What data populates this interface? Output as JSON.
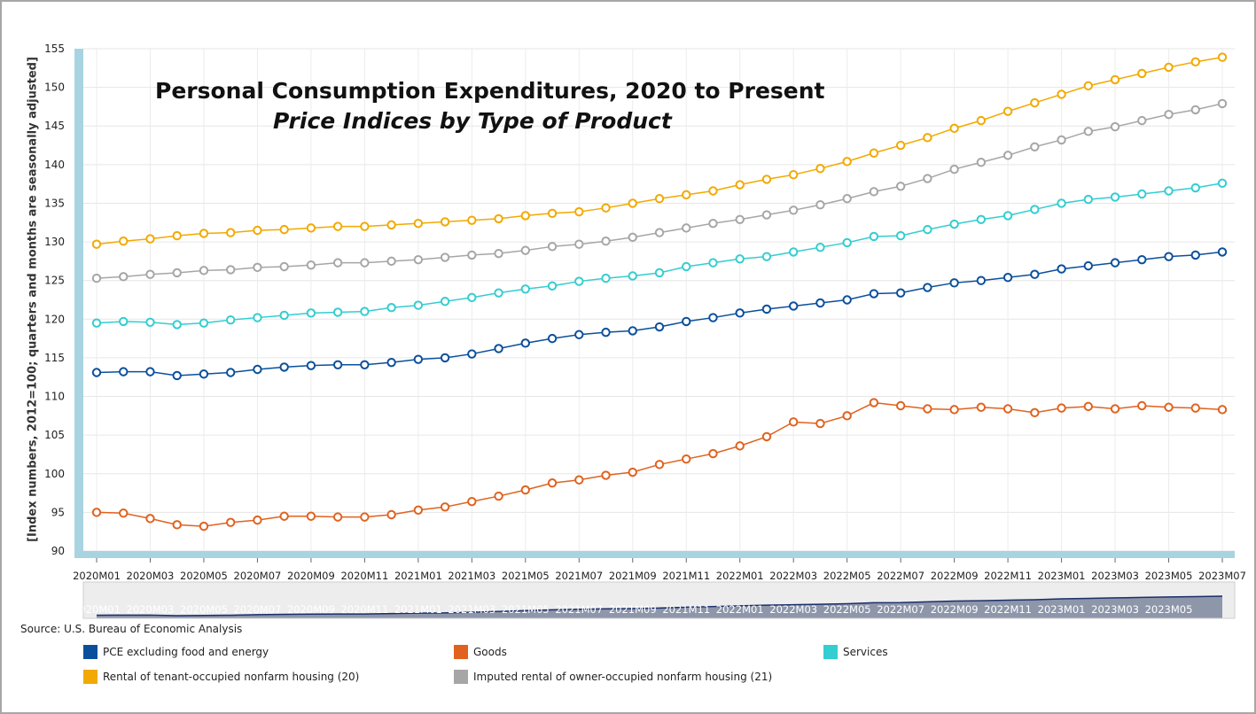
{
  "chart_data": {
    "type": "line",
    "title": "Personal Consumption Expenditures, 2020 to Present",
    "subtitle": "Price Indices by Type of Product",
    "ylabel": "[Index numbers, 2012=100; quarters and months are seasonally adjusted]",
    "xlabel": "",
    "ylim": [
      90,
      155
    ],
    "yticks": [
      90,
      95,
      100,
      105,
      110,
      115,
      120,
      125,
      130,
      135,
      140,
      145,
      150,
      155
    ],
    "grid": true,
    "legend_position": "bottom",
    "source": "Source: U.S. Bureau of Economic Analysis",
    "x": [
      "2020M01",
      "2020M02",
      "2020M03",
      "2020M04",
      "2020M05",
      "2020M06",
      "2020M07",
      "2020M08",
      "2020M09",
      "2020M10",
      "2020M11",
      "2020M12",
      "2021M01",
      "2021M02",
      "2021M03",
      "2021M04",
      "2021M05",
      "2021M06",
      "2021M07",
      "2021M08",
      "2021M09",
      "2021M10",
      "2021M11",
      "2021M12",
      "2022M01",
      "2022M02",
      "2022M03",
      "2022M04",
      "2022M05",
      "2022M06",
      "2022M07",
      "2022M08",
      "2022M09",
      "2022M10",
      "2022M11",
      "2022M12",
      "2023M01",
      "2023M02",
      "2023M03",
      "2023M04",
      "2023M05",
      "2023M06",
      "2023M07"
    ],
    "xtick_labels": [
      "2020M01",
      "2020M03",
      "2020M05",
      "2020M07",
      "2020M09",
      "2020M11",
      "2021M01",
      "2021M03",
      "2021M05",
      "2021M07",
      "2021M09",
      "2021M11",
      "2022M01",
      "2022M03",
      "2022M05",
      "2022M07",
      "2022M09",
      "2022M11",
      "2023M01",
      "2023M03",
      "2023M05",
      "2023M07"
    ],
    "navigator_labels": [
      "2020M01",
      "2020M03",
      "2020M05",
      "2020M07",
      "2020M09",
      "2020M11",
      "2021M01",
      "2021M03",
      "2021M05",
      "2021M07",
      "2021M09",
      "2021M11",
      "2022M01",
      "2022M03",
      "2022M05",
      "2022M07",
      "2022M09",
      "2022M11",
      "2023M01",
      "2023M03",
      "2023M05"
    ],
    "series": [
      {
        "name": "PCE excluding food and energy",
        "color": "#0b4f9c",
        "values": [
          113.1,
          113.2,
          113.2,
          112.7,
          112.9,
          113.1,
          113.5,
          113.8,
          114.0,
          114.1,
          114.1,
          114.4,
          114.8,
          115.0,
          115.5,
          116.2,
          116.9,
          117.5,
          118.0,
          118.3,
          118.5,
          119.0,
          119.7,
          120.2,
          120.8,
          121.3,
          121.7,
          122.1,
          122.5,
          123.3,
          123.4,
          124.1,
          124.7,
          125.0,
          125.4,
          125.8,
          126.5,
          126.9,
          127.3,
          127.7,
          128.1,
          128.3,
          128.7
        ]
      },
      {
        "name": "Goods",
        "color": "#e0621e",
        "values": [
          95.0,
          94.9,
          94.2,
          93.4,
          93.2,
          93.7,
          94.0,
          94.5,
          94.5,
          94.4,
          94.4,
          94.7,
          95.3,
          95.7,
          96.4,
          97.1,
          97.9,
          98.8,
          99.2,
          99.8,
          100.2,
          101.2,
          101.9,
          102.6,
          103.6,
          104.8,
          106.7,
          106.5,
          107.5,
          109.2,
          108.8,
          108.4,
          108.3,
          108.6,
          108.4,
          107.9,
          108.5,
          108.7,
          108.4,
          108.8,
          108.6,
          108.5,
          108.3
        ]
      },
      {
        "name": "Services",
        "color": "#34cdd0",
        "values": [
          119.5,
          119.7,
          119.6,
          119.3,
          119.5,
          119.9,
          120.2,
          120.5,
          120.8,
          120.9,
          121.0,
          121.5,
          121.8,
          122.3,
          122.8,
          123.4,
          123.9,
          124.3,
          124.9,
          125.3,
          125.6,
          126.0,
          126.8,
          127.3,
          127.8,
          128.1,
          128.7,
          129.3,
          129.9,
          130.7,
          130.8,
          131.6,
          132.3,
          132.9,
          133.4,
          134.2,
          135.0,
          135.5,
          135.8,
          136.2,
          136.6,
          137.0,
          137.6
        ]
      },
      {
        "name": "Rental of tenant-occupied nonfarm housing (20)",
        "color": "#f2a900",
        "values": [
          129.7,
          130.1,
          130.4,
          130.8,
          131.1,
          131.2,
          131.5,
          131.6,
          131.8,
          132.0,
          132.0,
          132.2,
          132.4,
          132.6,
          132.8,
          133.0,
          133.4,
          133.7,
          133.9,
          134.4,
          135.0,
          135.6,
          136.1,
          136.6,
          137.4,
          138.1,
          138.7,
          139.5,
          140.4,
          141.5,
          142.5,
          143.5,
          144.7,
          145.7,
          146.9,
          148.0,
          149.1,
          150.2,
          151.0,
          151.8,
          152.6,
          153.3,
          153.9
        ]
      },
      {
        "name": "Imputed rental of owner-occupied nonfarm housing (21)",
        "color": "#a6a6a6",
        "values": [
          125.3,
          125.5,
          125.8,
          126.0,
          126.3,
          126.4,
          126.7,
          126.8,
          127.0,
          127.3,
          127.3,
          127.5,
          127.7,
          128.0,
          128.3,
          128.5,
          128.9,
          129.4,
          129.7,
          130.1,
          130.6,
          131.2,
          131.8,
          132.4,
          132.9,
          133.5,
          134.1,
          134.8,
          135.6,
          136.5,
          137.2,
          138.2,
          139.4,
          140.3,
          141.2,
          142.3,
          143.2,
          144.3,
          144.9,
          145.7,
          146.5,
          147.1,
          147.9
        ]
      }
    ]
  }
}
